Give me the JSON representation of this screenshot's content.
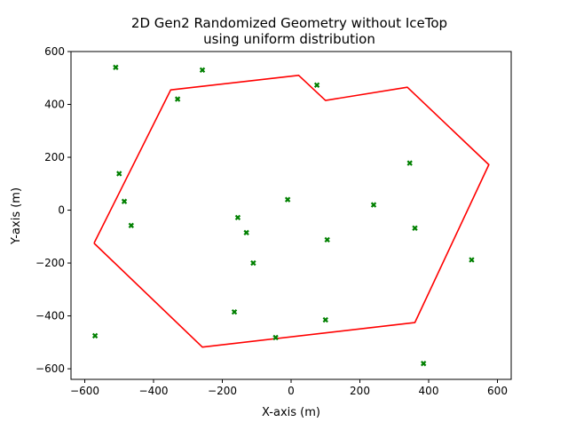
{
  "chart_data": {
    "type": "scatter",
    "title": "2D Gen2 Randomized Geometry without IceTop",
    "subtitle": "using uniform distribution",
    "xlabel": "X-axis (m)",
    "ylabel": "Y-axis (m)",
    "xlim": [
      -640,
      640
    ],
    "ylim": [
      -640,
      600
    ],
    "xticks": [
      -600,
      -400,
      -200,
      0,
      200,
      400,
      600
    ],
    "yticks": [
      -600,
      -400,
      -200,
      0,
      200,
      400,
      600
    ],
    "grid": false,
    "series": [
      {
        "kind": "line",
        "color": "#ff0000",
        "points": [
          [
            -573,
            -125
          ],
          [
            -350,
            455
          ],
          [
            22,
            510
          ],
          [
            100,
            415
          ],
          [
            338,
            465
          ],
          [
            575,
            172
          ],
          [
            360,
            -425
          ],
          [
            -258,
            -518
          ],
          [
            -573,
            -125
          ]
        ]
      },
      {
        "kind": "scatter",
        "color": "#008000",
        "marker": "x",
        "points": [
          [
            -510,
            540
          ],
          [
            -258,
            530
          ],
          [
            75,
            473
          ],
          [
            -330,
            420
          ],
          [
            -500,
            138
          ],
          [
            -485,
            33
          ],
          [
            -465,
            -58
          ],
          [
            -570,
            -475
          ],
          [
            -155,
            -28
          ],
          [
            -130,
            -85
          ],
          [
            -10,
            40
          ],
          [
            -110,
            -200
          ],
          [
            -165,
            -385
          ],
          [
            -45,
            -482
          ],
          [
            100,
            -415
          ],
          [
            105,
            -112
          ],
          [
            240,
            20
          ],
          [
            345,
            178
          ],
          [
            360,
            -68
          ],
          [
            385,
            -580
          ],
          [
            525,
            -188
          ]
        ]
      }
    ]
  }
}
